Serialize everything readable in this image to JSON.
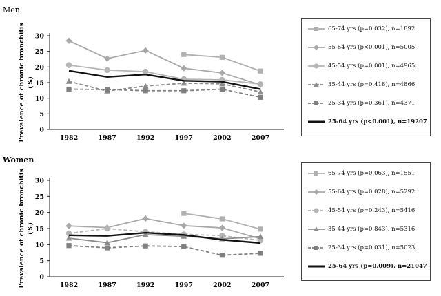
{
  "chart_data": [
    {
      "type": "line",
      "title": "Men",
      "ylabel": "Prevalence of chronic bronchitis (%)",
      "xlabel": "",
      "ylim": [
        0,
        30
      ],
      "yticks": [
        0,
        5,
        10,
        15,
        20,
        25,
        30
      ],
      "categories": [
        "1982",
        "1987",
        "1992",
        "1997",
        "2002",
        "2007"
      ],
      "legend_position": "right",
      "series": [
        {
          "name": "65-74 yrs (p=0.032), n=1892",
          "values": [
            null,
            null,
            null,
            24.0,
            23.1,
            18.7
          ],
          "color": "#b0b0b0",
          "dash": "solid",
          "marker": "square"
        },
        {
          "name": "55-64 yrs (p<0.001), n=5005",
          "values": [
            28.4,
            22.7,
            25.3,
            19.6,
            18.1,
            14.3
          ],
          "color": "#a8a8a8",
          "dash": "solid",
          "marker": "diamond"
        },
        {
          "name": "45-54 yrs (p=0.001), n=4965",
          "values": [
            20.6,
            19.0,
            18.5,
            16.1,
            15.9,
            14.5
          ],
          "color": "#b5b5b5",
          "dash": "solid",
          "marker": "circle"
        },
        {
          "name": "35-44 yrs (p=0.418), n=4866",
          "values": [
            15.4,
            12.3,
            13.9,
            14.8,
            14.6,
            12.0
          ],
          "color": "#8c8c8c",
          "dash": "dashed",
          "marker": "triangle"
        },
        {
          "name": "25-34 yrs (p=0.361), n=4371",
          "values": [
            12.9,
            12.8,
            12.4,
            12.4,
            12.9,
            10.3
          ],
          "color": "#808080",
          "dash": "dashed",
          "marker": "square"
        },
        {
          "name": "25-64 yrs (p<0.001), n=19207",
          "values": [
            18.8,
            16.8,
            17.6,
            15.6,
            15.3,
            12.9
          ],
          "color": "#111111",
          "dash": "solid",
          "marker": "none"
        }
      ]
    },
    {
      "type": "line",
      "title": "Women",
      "ylabel": "Prevalence of chronic bronchitis (%)",
      "xlabel": "",
      "ylim": [
        0,
        30
      ],
      "yticks": [
        0,
        5,
        10,
        15,
        20,
        25,
        30
      ],
      "categories": [
        "1982",
        "1987",
        "1992",
        "1997",
        "2002",
        "2007"
      ],
      "legend_position": "right",
      "series": [
        {
          "name": "65-74 yrs (p=0.063), n=1551",
          "values": [
            null,
            null,
            null,
            19.7,
            18.0,
            14.8
          ],
          "color": "#b0b0b0",
          "dash": "solid",
          "marker": "square"
        },
        {
          "name": "55-64 yrs (p=0.028), n=5292",
          "values": [
            15.8,
            15.3,
            18.1,
            15.9,
            15.2,
            11.8
          ],
          "color": "#a8a8a8",
          "dash": "solid",
          "marker": "diamond"
        },
        {
          "name": "45-54 yrs (p=0.243), n=5416",
          "values": [
            13.5,
            15.0,
            14.0,
            13.2,
            12.8,
            11.3
          ],
          "color": "#b5b5b5",
          "dash": "dashed",
          "marker": "circle"
        },
        {
          "name": "35-44 yrs (p=0.843), n=5316",
          "values": [
            12.0,
            10.6,
            13.1,
            12.6,
            11.8,
            12.5
          ],
          "color": "#8c8c8c",
          "dash": "solid",
          "marker": "triangle"
        },
        {
          "name": "25-34 yrs (p=0.031), n=5023",
          "values": [
            9.7,
            9.0,
            9.6,
            9.4,
            6.7,
            7.3
          ],
          "color": "#808080",
          "dash": "dashed",
          "marker": "square"
        },
        {
          "name": "25-64 yrs (p=0.009), n=21047",
          "values": [
            12.9,
            12.7,
            13.7,
            13.0,
            11.5,
            10.5
          ],
          "color": "#111111",
          "dash": "solid",
          "marker": "none"
        }
      ]
    }
  ]
}
